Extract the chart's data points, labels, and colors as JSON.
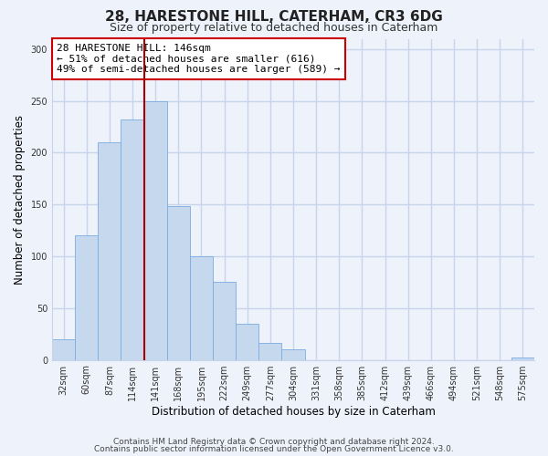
{
  "title": "28, HARESTONE HILL, CATERHAM, CR3 6DG",
  "subtitle": "Size of property relative to detached houses in Caterham",
  "xlabel": "Distribution of detached houses by size in Caterham",
  "ylabel": "Number of detached properties",
  "bar_labels": [
    "32sqm",
    "60sqm",
    "87sqm",
    "114sqm",
    "141sqm",
    "168sqm",
    "195sqm",
    "222sqm",
    "249sqm",
    "277sqm",
    "304sqm",
    "331sqm",
    "358sqm",
    "385sqm",
    "412sqm",
    "439sqm",
    "466sqm",
    "494sqm",
    "521sqm",
    "548sqm",
    "575sqm"
  ],
  "bar_values": [
    20,
    120,
    210,
    232,
    250,
    148,
    100,
    75,
    35,
    16,
    10,
    0,
    0,
    0,
    0,
    0,
    0,
    0,
    0,
    0,
    2
  ],
  "highlight_bar_index": 4,
  "bar_color_normal": "#c5d8ee",
  "bar_edge_color": "#7aabe0",
  "highlight_line_color": "#aa0000",
  "annotation_line1": "28 HARESTONE HILL: 146sqm",
  "annotation_line2": "← 51% of detached houses are smaller (616)",
  "annotation_line3": "49% of semi-detached houses are larger (589) →",
  "annotation_box_edge_color": "#cc0000",
  "ylim": [
    0,
    310
  ],
  "yticks": [
    0,
    50,
    100,
    150,
    200,
    250,
    300
  ],
  "footer_line1": "Contains HM Land Registry data © Crown copyright and database right 2024.",
  "footer_line2": "Contains public sector information licensed under the Open Government Licence v3.0.",
  "background_color": "#eef2fb",
  "plot_background_color": "#eef2fb",
  "grid_color": "#c8d4ea",
  "title_fontsize": 11,
  "subtitle_fontsize": 9,
  "axis_label_fontsize": 8.5,
  "tick_label_fontsize": 7,
  "footer_fontsize": 6.5,
  "annotation_fontsize": 8
}
